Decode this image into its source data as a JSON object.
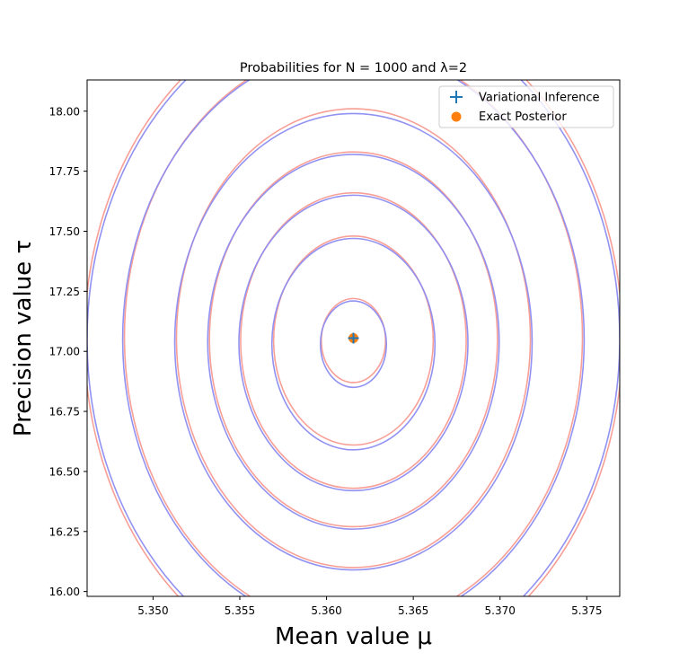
{
  "chart_data": {
    "type": "contour",
    "title": "Probabilities for N = 1000 and λ=2",
    "xlabel": "Mean value μ",
    "ylabel": "Precision value τ",
    "xlim": [
      5.3462,
      5.3769
    ],
    "ylim": [
      15.98,
      18.13
    ],
    "xticks": [
      "5.350",
      "5.355",
      "5.360",
      "5.365",
      "5.370",
      "5.375"
    ],
    "yticks": [
      "16.00",
      "16.25",
      "16.50",
      "16.75",
      "17.00",
      "17.25",
      "17.50",
      "17.75",
      "18.00"
    ],
    "grid": false,
    "legend": {
      "placement": "top-right",
      "entries": [
        "Variational Inference",
        "Exact Posterior"
      ]
    },
    "series": [
      {
        "name": "Variational Inference",
        "color": "#8c8cf2",
        "marker": "plus",
        "marker_color": "#1f77b4",
        "center": {
          "mu": 5.36155,
          "tau": 17.03
        },
        "contours": [
          {
            "mu_halfwidth": 0.0019,
            "tau_top": 17.21,
            "tau_bottom": 16.85
          },
          {
            "mu_halfwidth": 0.0047,
            "tau_top": 17.47,
            "tau_bottom": 16.59
          },
          {
            "mu_halfwidth": 0.0066,
            "tau_top": 17.65,
            "tau_bottom": 16.42
          },
          {
            "mu_halfwidth": 0.0084,
            "tau_top": 17.82,
            "tau_bottom": 16.26
          },
          {
            "mu_halfwidth": 0.0103,
            "tau_top": 17.99,
            "tau_bottom": 16.09
          },
          {
            "mu_halfwidth": 0.0133,
            "tau_top": 18.26,
            "tau_bottom": 15.84
          },
          {
            "mu_halfwidth": 0.01535,
            "tau_top": 18.44,
            "tau_bottom": 15.66
          }
        ]
      },
      {
        "name": "Exact Posterior",
        "color": "#f89a90",
        "marker": "circle",
        "marker_color": "#ff7f0e",
        "center": {
          "mu": 5.36155,
          "tau": 17.055
        },
        "contours": [
          {
            "mu_halfwidth": 0.00185,
            "tau_top": 17.22,
            "tau_bottom": 16.87
          },
          {
            "mu_halfwidth": 0.0046,
            "tau_top": 17.48,
            "tau_bottom": 16.61
          },
          {
            "mu_halfwidth": 0.0065,
            "tau_top": 17.66,
            "tau_bottom": 16.43
          },
          {
            "mu_halfwidth": 0.0083,
            "tau_top": 17.83,
            "tau_bottom": 16.27
          },
          {
            "mu_halfwidth": 0.0102,
            "tau_top": 18.01,
            "tau_bottom": 16.1
          },
          {
            "mu_halfwidth": 0.0132,
            "tau_top": 18.27,
            "tau_bottom": 15.85
          },
          {
            "mu_halfwidth": 0.0155,
            "tau_top": 18.46,
            "tau_bottom": 15.64
          }
        ]
      }
    ]
  }
}
